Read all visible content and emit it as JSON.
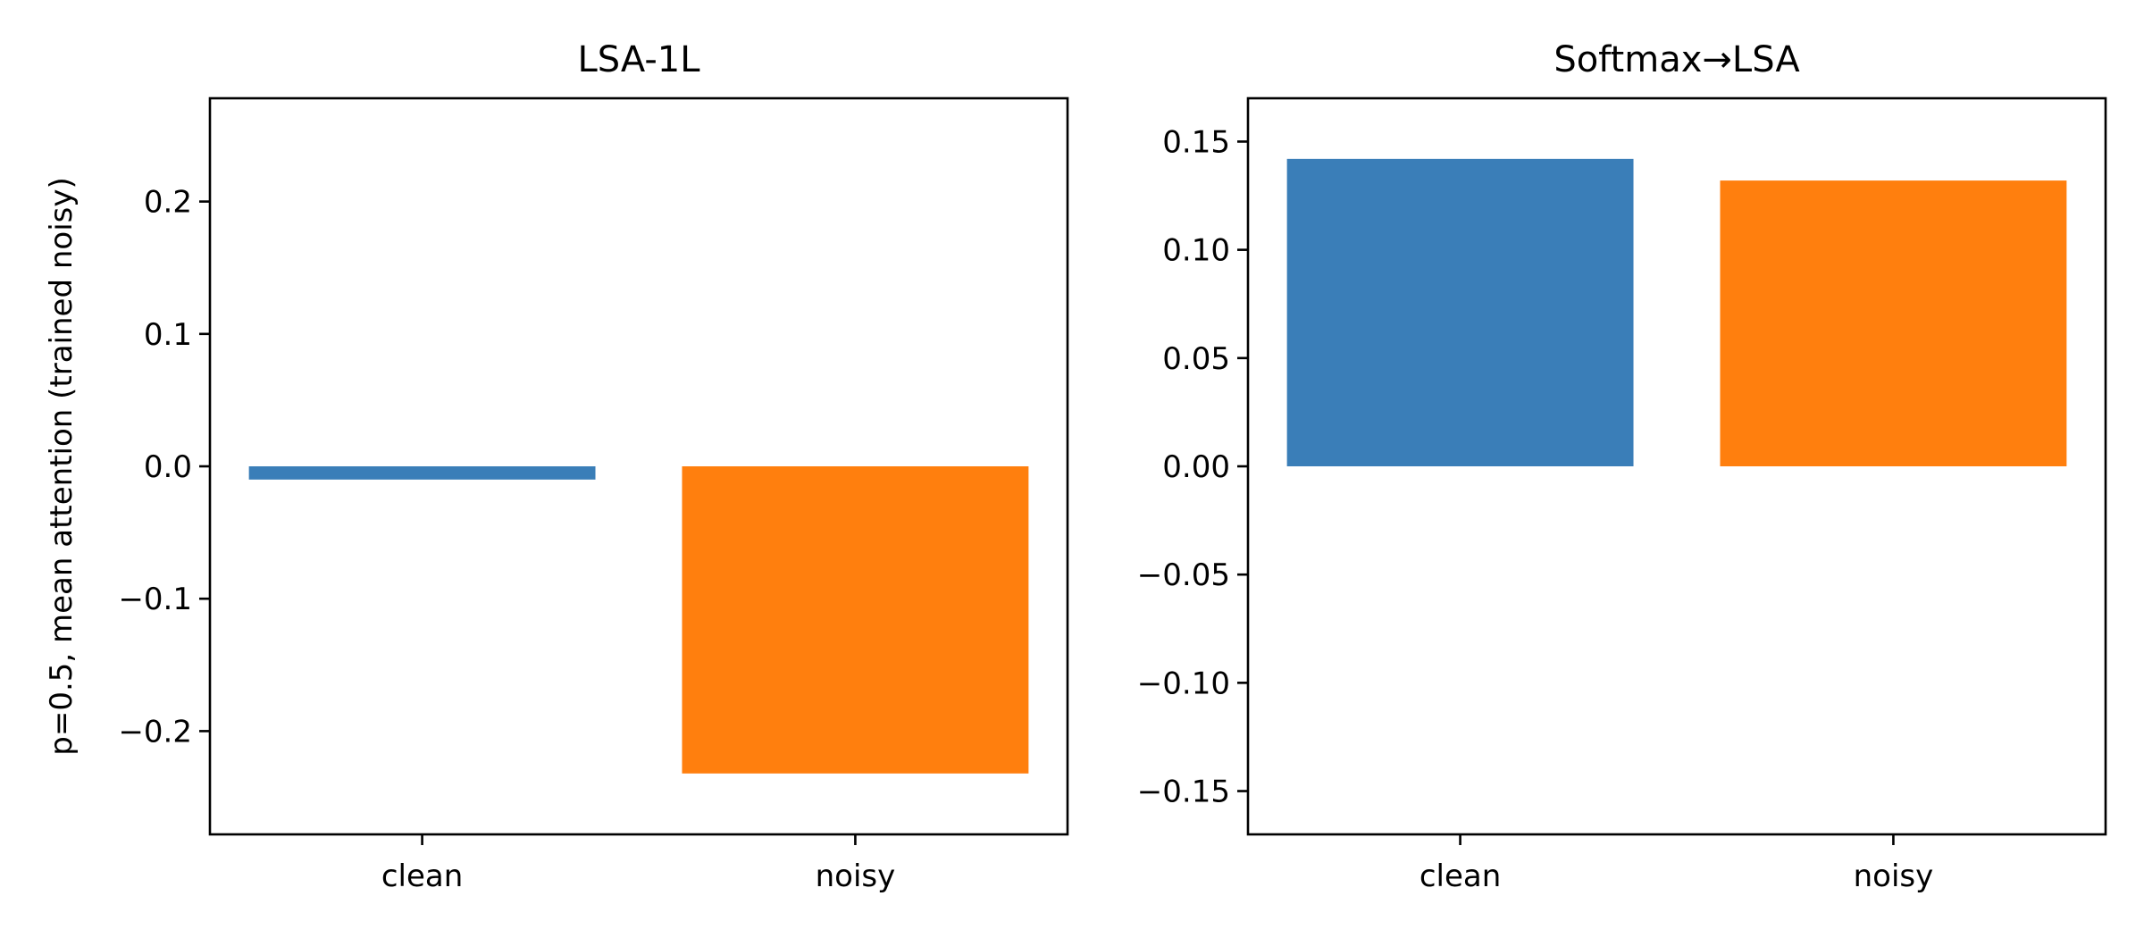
{
  "chart_data": [
    {
      "type": "bar",
      "title": "LSA-1L",
      "ylabel": "p=0.5, mean attention (trained noisy)",
      "xlabel": "",
      "categories": [
        "clean",
        "noisy"
      ],
      "values": [
        -0.01,
        -0.232
      ],
      "colors": [
        "#3a7eb8",
        "#ff7f0e"
      ],
      "ylim": [
        -0.278,
        0.278
      ],
      "yticks": [
        -0.2,
        -0.1,
        0.0,
        0.1,
        0.2
      ],
      "ytick_labels": [
        "−0.2",
        "−0.1",
        "0.0",
        "0.1",
        "0.2"
      ],
      "grid": false
    },
    {
      "type": "bar",
      "title": "Softmax→LSA",
      "ylabel": "",
      "xlabel": "",
      "categories": [
        "clean",
        "noisy"
      ],
      "values": [
        0.142,
        0.132
      ],
      "colors": [
        "#3a7eb8",
        "#ff7f0e"
      ],
      "ylim": [
        -0.17,
        0.17
      ],
      "yticks": [
        -0.15,
        -0.1,
        -0.05,
        0.0,
        0.05,
        0.1,
        0.15
      ],
      "ytick_labels": [
        "−0.15",
        "−0.10",
        "−0.05",
        "0.00",
        "0.05",
        "0.10",
        "0.15"
      ],
      "grid": false
    }
  ]
}
